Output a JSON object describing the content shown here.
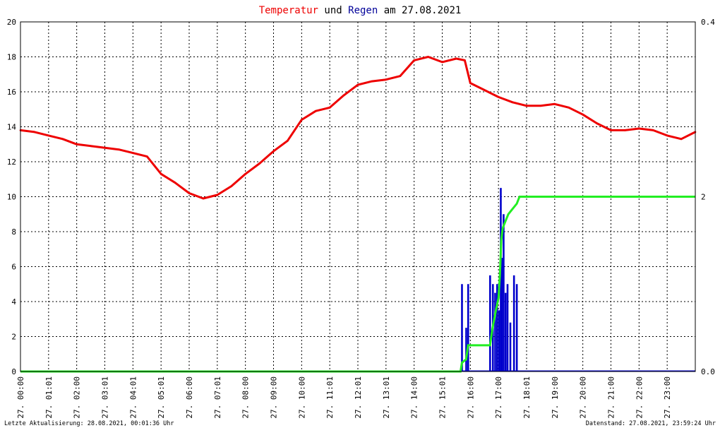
{
  "title": {
    "part1": "Temperatur",
    "part2": " und ",
    "part3": "Regen",
    "part4": " am 27.08.2021"
  },
  "colors": {
    "temperature": "#ee0000",
    "rain_bars": "#0000cc",
    "rain_cumulative": "#22ee22",
    "title_temp": "#ee0000",
    "title_rain": "#000099"
  },
  "footer": {
    "left": "Letzte Aktualisierung: 28.08.2021, 00:01:36 Uhr",
    "right": "Datenstand: 27.08.2021, 23:59:24 Uhr"
  },
  "chart_data": {
    "type": "line",
    "grid": true,
    "xlim": [
      0,
      24
    ],
    "ylim_left": [
      0,
      20
    ],
    "ylim_right": [
      0,
      0.4
    ],
    "y_left_ticks": [
      "0",
      "2",
      "4",
      "6",
      "8",
      "10",
      "12",
      "14",
      "16",
      "18",
      "20"
    ],
    "y_right_ticks": [
      "0.0",
      "0.4"
    ],
    "cumulative_label": "2",
    "x_ticks": [
      "27. 00:00",
      "27. 01:01",
      "27. 02:00",
      "27. 03:01",
      "27. 04:01",
      "27. 05:01",
      "27. 06:00",
      "27. 07:01",
      "27. 08:00",
      "27. 09:00",
      "27. 10:00",
      "27. 11:01",
      "27. 12:01",
      "27. 13:01",
      "27. 14:00",
      "27. 15:01",
      "27. 16:00",
      "27. 17:00",
      "27. 18:01",
      "27. 19:00",
      "27. 20:00",
      "27. 21:00",
      "27. 22:00",
      "27. 23:00"
    ],
    "series": [
      {
        "kind": "temperature",
        "x": [
          0,
          0.5,
          1,
          1.5,
          2,
          2.5,
          3,
          3.5,
          4,
          4.5,
          5,
          5.5,
          6,
          6.5,
          7,
          7.5,
          8,
          8.5,
          9,
          9.5,
          10,
          10.5,
          11,
          11.5,
          12,
          12.5,
          13,
          13.5,
          14,
          14.5,
          15,
          15.5,
          15.8,
          16,
          16.5,
          17,
          17.5,
          18,
          18.5,
          19,
          19.5,
          20,
          20.5,
          21,
          21.5,
          22,
          22.5,
          23,
          23.5,
          24
        ],
        "y": [
          13.8,
          13.7,
          13.5,
          13.3,
          13.0,
          12.9,
          12.8,
          12.7,
          12.5,
          12.3,
          11.3,
          10.8,
          10.2,
          9.9,
          10.1,
          10.6,
          11.3,
          11.9,
          12.6,
          13.2,
          14.4,
          14.9,
          15.1,
          15.8,
          16.4,
          16.6,
          16.7,
          16.9,
          17.8,
          18.0,
          17.7,
          17.9,
          17.8,
          16.5,
          16.1,
          15.7,
          15.4,
          15.2,
          15.2,
          15.3,
          15.1,
          14.7,
          14.2,
          13.8,
          13.8,
          13.9,
          13.8,
          13.5,
          13.3,
          13.7
        ]
      },
      {
        "kind": "rain_bars",
        "x": [
          15.7,
          15.85,
          15.92,
          16.7,
          16.8,
          16.88,
          16.95,
          17.02,
          17.08,
          17.12,
          17.18,
          17.25,
          17.32,
          17.42,
          17.55,
          17.65
        ],
        "y": [
          5.0,
          2.5,
          5.0,
          5.5,
          5.0,
          4.5,
          5.0,
          3.5,
          10.5,
          6.5,
          9.0,
          4.5,
          5.0,
          2.8,
          5.5,
          5.0
        ]
      },
      {
        "kind": "rain_cumulative",
        "x": [
          0,
          15.65,
          15.7,
          15.85,
          15.92,
          16.7,
          16.78,
          16.85,
          16.92,
          17.0,
          17.05,
          17.1,
          17.15,
          17.25,
          17.35,
          17.5,
          17.65,
          17.75,
          24
        ],
        "y": [
          0,
          0,
          0.5,
          0.7,
          1.5,
          1.5,
          2.4,
          3.0,
          3.6,
          4.2,
          5.5,
          7.5,
          8.2,
          8.6,
          9.0,
          9.3,
          9.6,
          10.0,
          10.0
        ]
      }
    ]
  }
}
